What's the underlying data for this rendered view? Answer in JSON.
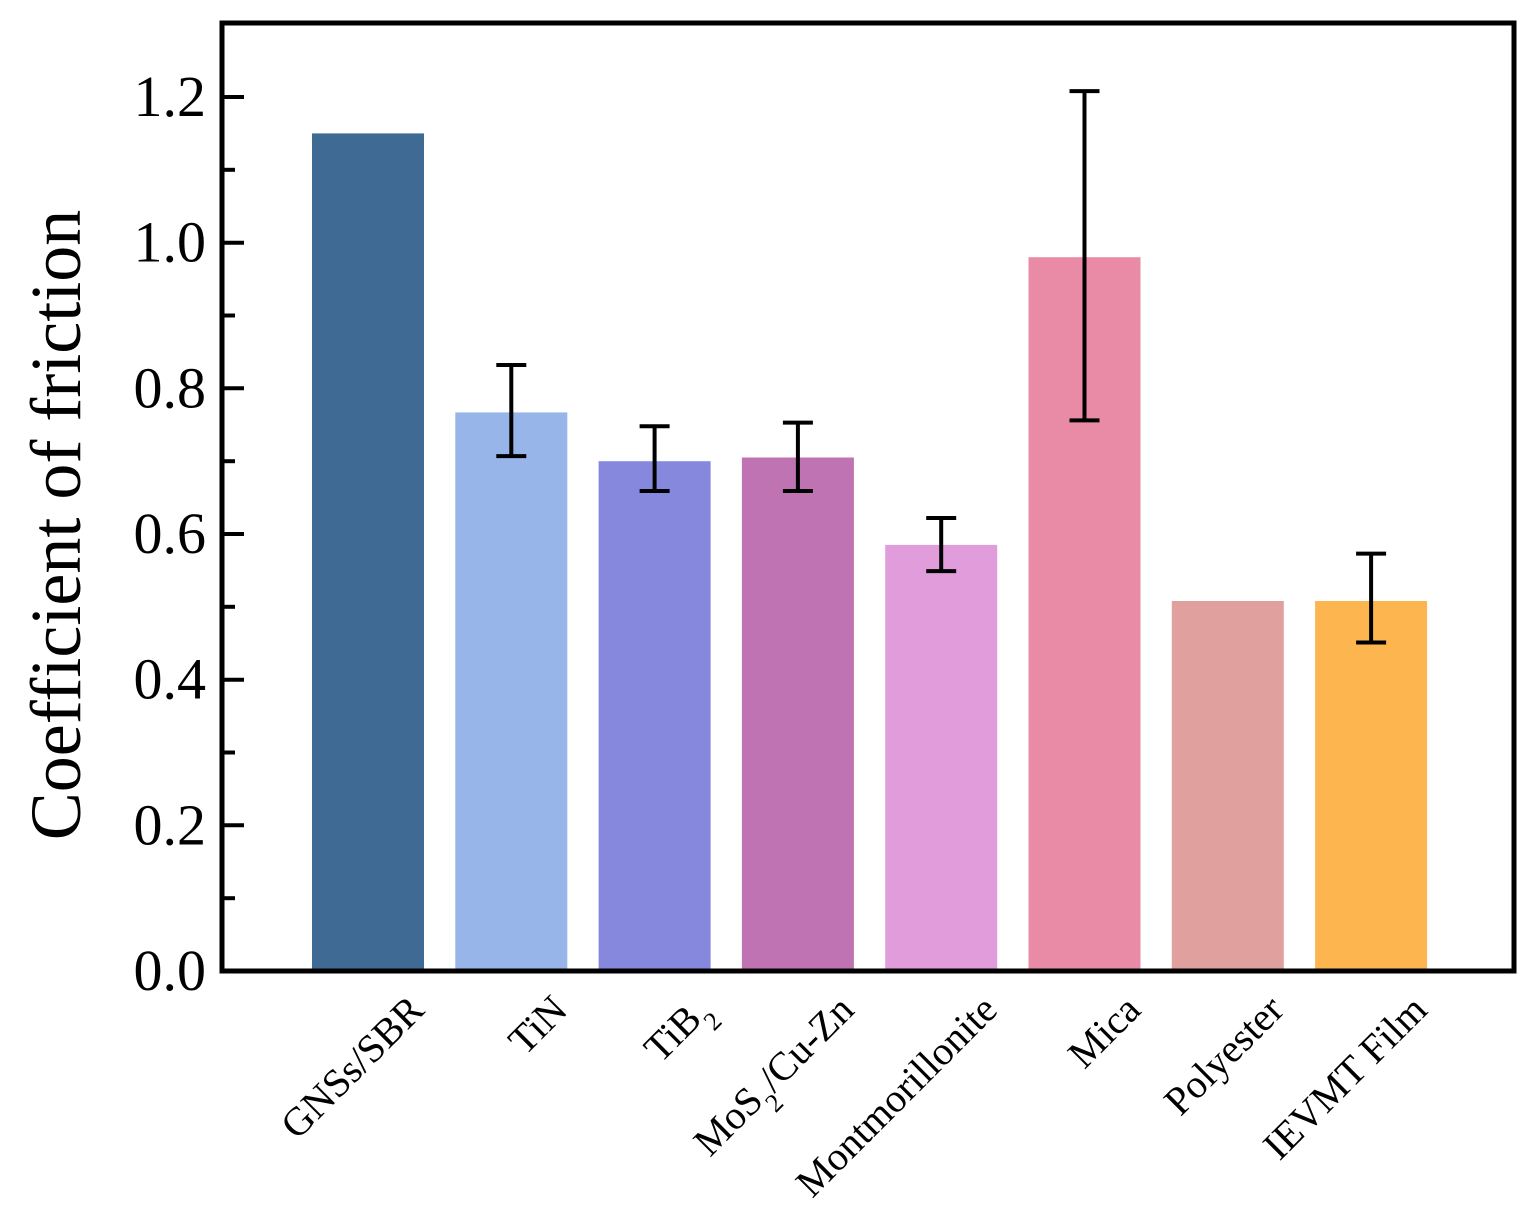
{
  "chart_data": {
    "type": "bar",
    "title": "",
    "xlabel": "",
    "ylabel": "Coefficient of friction",
    "ylim": [
      0,
      1.3
    ],
    "yticks": [
      "0.0",
      "0.2",
      "0.4",
      "0.6",
      "0.8",
      "1.0",
      "1.2"
    ],
    "ytick_values": [
      0,
      0.2,
      0.4,
      0.6,
      0.8,
      1.0,
      1.2
    ],
    "grid": false,
    "categories": [
      {
        "text": "GNSs/SBR"
      },
      {
        "text": "TiN"
      },
      {
        "text": "TiB",
        "sub": "2"
      },
      {
        "text": "MoS",
        "sub": "2",
        "after": "/Cu-Zn"
      },
      {
        "text": "Montmorillonite"
      },
      {
        "text": "Mica"
      },
      {
        "text": "Polyester"
      },
      {
        "text": "IEVMT Film"
      }
    ],
    "values": [
      1.15,
      0.767,
      0.7,
      0.705,
      0.585,
      0.98,
      0.508,
      0.508
    ],
    "errors": [
      null,
      [
        0.707,
        0.832
      ],
      [
        0.659,
        0.748
      ],
      [
        0.659,
        0.753
      ],
      [
        0.549,
        0.622
      ],
      [
        0.756,
        1.208
      ],
      null,
      [
        0.451,
        0.573
      ]
    ],
    "colors": [
      "#3e6a94",
      "#98b5ea",
      "#8588dc",
      "#bf73b2",
      "#e19cdc",
      "#e98ba6",
      "#e0a09e",
      "#fdb54f"
    ]
  }
}
